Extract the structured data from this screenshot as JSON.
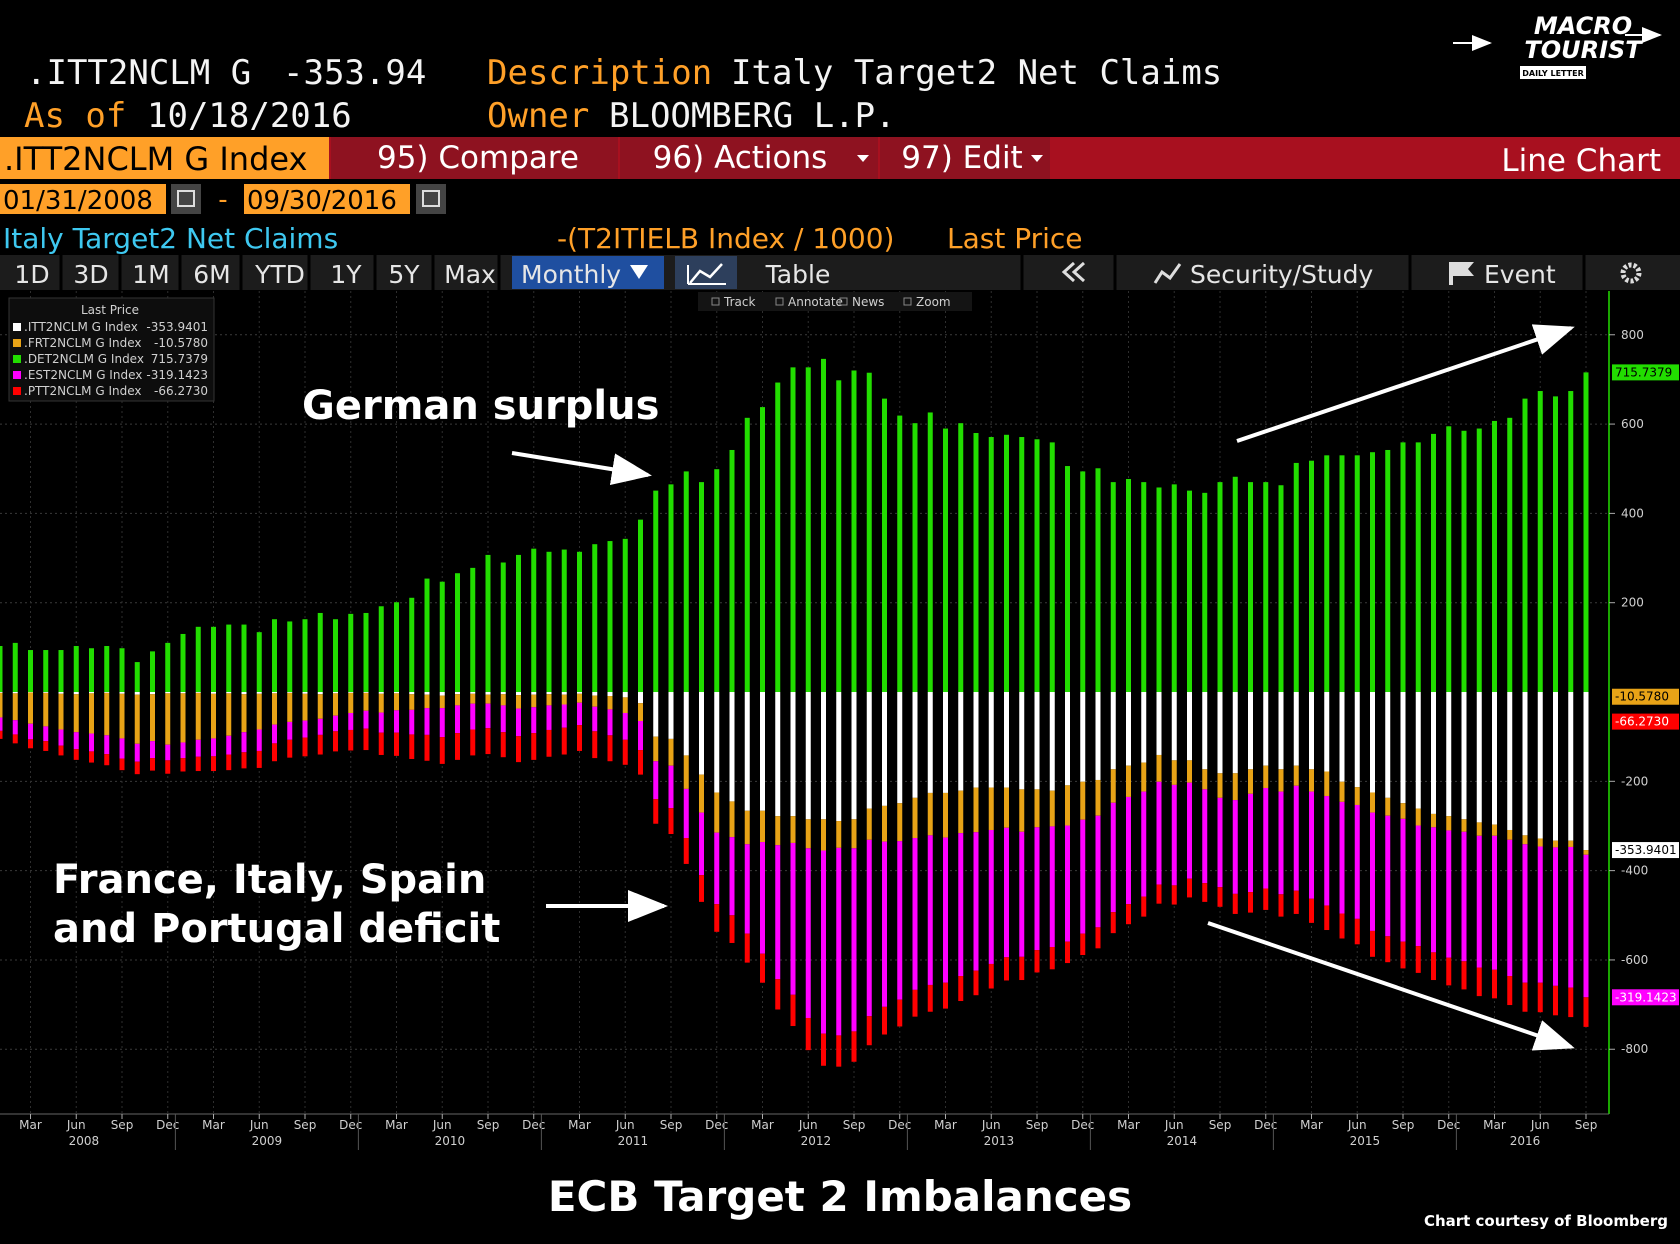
{
  "header": {
    "ticker": ".ITT2NCLM G",
    "value": -353.94,
    "description_label": "Description",
    "description": "Italy Target2 Net Claims",
    "as_of_label": "As of",
    "as_of": "10/18/2016",
    "owner_label": "Owner",
    "owner": "BLOOMBERG L.P."
  },
  "logo": {
    "line1": "MACRO",
    "line2": "TOURIST",
    "line3": "DAILY LETTER"
  },
  "menu": {
    "security": ".ITT2NCLM G Index",
    "compare": "95) Compare",
    "actions": "96) Actions",
    "edit": "97) Edit",
    "view": "Line Chart"
  },
  "dates": {
    "start": "01/31/2008",
    "separator": "-",
    "end": "09/30/2016"
  },
  "chart_header": {
    "title": "Italy Target2 Net Claims",
    "formula": "-(T2ITIELB Index / 1000)",
    "field": "Last Price"
  },
  "toolbar": {
    "ranges": [
      "1D",
      "3D",
      "1M",
      "6M",
      "YTD",
      "1Y",
      "5Y",
      "Max"
    ],
    "frequency": "Monthly",
    "table": "Table",
    "study": "Security/Study",
    "event": "Event"
  },
  "chart_tools": [
    "Track",
    "Annotate",
    "News",
    "Zoom"
  ],
  "chart_data": {
    "type": "bar",
    "stacked": true,
    "grid": true,
    "legend_title": "Last Price",
    "legend_position": "top-left",
    "categories": [
      null,
      null,
      "Mar",
      null,
      null,
      "Jun",
      null,
      null,
      "Sep",
      null,
      null,
      "Dec",
      null,
      null,
      "Mar",
      null,
      null,
      "Jun",
      null,
      null,
      "Sep",
      null,
      null,
      "Dec",
      null,
      null,
      "Mar",
      null,
      null,
      "Jun",
      null,
      null,
      "Sep",
      null,
      null,
      "Dec",
      null,
      null,
      "Mar",
      null,
      null,
      "Jun",
      null,
      null,
      "Sep",
      null,
      null,
      "Dec",
      null,
      null,
      "Mar",
      null,
      null,
      "Jun",
      null,
      null,
      "Sep",
      null,
      null,
      "Dec",
      null,
      null,
      "Mar",
      null,
      null,
      "Jun",
      null,
      null,
      "Sep",
      null,
      null,
      "Dec",
      null,
      null,
      "Mar",
      null,
      null,
      "Jun",
      null,
      null,
      "Sep",
      null,
      null,
      "Dec",
      null,
      null,
      "Mar",
      null,
      null,
      "Jun",
      null,
      null,
      "Sep",
      null,
      null,
      "Dec",
      null,
      null,
      "Mar",
      null,
      null,
      "Jun",
      null,
      null,
      "Sep"
    ],
    "years": [
      "2008",
      "2009",
      "2010",
      "2011",
      "2012",
      "2013",
      "2014",
      "2015",
      "2016"
    ],
    "series": [
      {
        "name": ".ITT2NCLM G Index",
        "color": "#ffffff",
        "last_label": "-353.9401",
        "values": [
          -2,
          -3,
          -1,
          -2,
          -4,
          -5,
          -3,
          -2,
          -4,
          -6,
          -5,
          -3,
          -3,
          -2,
          -4,
          -3,
          -5,
          -4,
          -3,
          -2,
          -4,
          -5,
          -3,
          -2,
          -2,
          -4,
          -3,
          -5,
          -6,
          -8,
          -5,
          -4,
          -6,
          -5,
          -7,
          -6,
          -5,
          -6,
          -4,
          -8,
          -9,
          -12,
          -25,
          -100,
          -105,
          -142,
          -185,
          -225,
          -245,
          -266,
          -266,
          -278,
          -278,
          -285,
          -285,
          -289,
          -285,
          -261,
          -255,
          -249,
          -237,
          -226,
          -226,
          -221,
          -214,
          -214,
          -214,
          -218,
          -218,
          -221,
          -209,
          -201,
          -197,
          -173,
          -165,
          -158,
          -141,
          -153,
          -153,
          -173,
          -182,
          -182,
          -173,
          -165,
          -173,
          -165,
          -173,
          -178,
          -201,
          -213,
          -225,
          -237,
          -249,
          -261,
          -273,
          -278,
          -285,
          -292,
          -297,
          -309,
          -321,
          -328,
          -333,
          -333,
          -353.9401
        ]
      },
      {
        "name": ".FRT2NCLM G Index",
        "color": "#e8a317",
        "last_label": "-10.5780",
        "values": [
          -55,
          -60,
          -70,
          -75,
          -80,
          -85,
          -90,
          -95,
          -100,
          -110,
          -105,
          -115,
          -110,
          -105,
          -100,
          -95,
          -85,
          -80,
          -70,
          -65,
          -60,
          -55,
          -50,
          -45,
          -40,
          -42,
          -38,
          -35,
          -30,
          -28,
          -25,
          -22,
          -20,
          -25,
          -30,
          -28,
          -25,
          -22,
          -20,
          -25,
          -30,
          -35,
          -40,
          -55,
          -60,
          -75,
          -85,
          -90,
          -80,
          -75,
          -70,
          -65,
          -60,
          -65,
          -70,
          -60,
          -65,
          -70,
          -80,
          -85,
          -90,
          -95,
          -100,
          -95,
          -100,
          -95,
          -90,
          -95,
          -85,
          -80,
          -90,
          -85,
          -80,
          -75,
          -70,
          -65,
          -60,
          -55,
          -50,
          -45,
          -55,
          -60,
          -55,
          -50,
          -50,
          -45,
          -50,
          -55,
          -45,
          -40,
          -45,
          -40,
          -35,
          -38,
          -30,
          -32,
          -28,
          -30,
          -25,
          -22,
          -20,
          -18,
          -15,
          -14,
          -10.578
        ]
      },
      {
        "name": ".DET2NCLM G Index",
        "color": "#22dd00",
        "last_label": "715.7379",
        "values": [
          103,
          110,
          94,
          94,
          94,
          103,
          98,
          103,
          98,
          67,
          91,
          110,
          130,
          146,
          146,
          151,
          151,
          134,
          163,
          158,
          163,
          177,
          163,
          175,
          177,
          192,
          201,
          211,
          254,
          247,
          266,
          278,
          307,
          290,
          307,
          321,
          314,
          319,
          314,
          331,
          338,
          343,
          386,
          451,
          465,
          494,
          470,
          499,
          542,
          614,
          638,
          693,
          727,
          727,
          746,
          698,
          720,
          715,
          657,
          619,
          602,
          626,
          590,
          602,
          580,
          571,
          576,
          571,
          566,
          559,
          506,
          494,
          501,
          470,
          477,
          470,
          458,
          465,
          451,
          446,
          470,
          482,
          470,
          470,
          463,
          513,
          518,
          530,
          530,
          530,
          537,
          542,
          559,
          559,
          578,
          595,
          585,
          590,
          607,
          614,
          657,
          674,
          662,
          674,
          715.7379
        ]
      },
      {
        "name": ".EST2NCLM G Index",
        "color": "#ff00ff",
        "last_label": "-319.1423",
        "values": [
          -30,
          -32,
          -35,
          -33,
          -36,
          -38,
          -40,
          -42,
          -45,
          -40,
          -38,
          -35,
          -35,
          -38,
          -40,
          -42,
          -45,
          -48,
          -42,
          -40,
          -38,
          -36,
          -35,
          -38,
          -40,
          -45,
          -50,
          -55,
          -60,
          -65,
          -62,
          -58,
          -55,
          -60,
          -62,
          -58,
          -55,
          -52,
          -50,
          -55,
          -58,
          -60,
          -65,
          -85,
          -95,
          -110,
          -140,
          -160,
          -175,
          -200,
          -250,
          -300,
          -340,
          -380,
          -410,
          -420,
          -410,
          -395,
          -370,
          -355,
          -340,
          -335,
          -325,
          -320,
          -310,
          -300,
          -290,
          -280,
          -275,
          -270,
          -260,
          -255,
          -250,
          -245,
          -240,
          -235,
          -230,
          -225,
          -215,
          -210,
          -200,
          -210,
          -220,
          -225,
          -230,
          -235,
          -240,
          -245,
          -250,
          -255,
          -265,
          -270,
          -275,
          -270,
          -280,
          -285,
          -290,
          -295,
          -300,
          -305,
          -310,
          -305,
          -310,
          -315,
          -319.1423
        ]
      },
      {
        "name": ".PTT2NCLM G Index",
        "color": "#ff0000",
        "last_label": "-66.2730",
        "values": [
          -18,
          -20,
          -20,
          -22,
          -22,
          -24,
          -25,
          -25,
          -26,
          -28,
          -28,
          -30,
          -30,
          -32,
          -33,
          -35,
          -36,
          -38,
          -40,
          -40,
          -42,
          -44,
          -45,
          -46,
          -48,
          -50,
          -52,
          -55,
          -58,
          -60,
          -60,
          -58,
          -58,
          -56,
          -58,
          -60,
          -60,
          -60,
          -58,
          -60,
          -58,
          -56,
          -55,
          -55,
          -58,
          -58,
          -60,
          -62,
          -62,
          -65,
          -65,
          -68,
          -70,
          -72,
          -72,
          -70,
          -68,
          -65,
          -62,
          -60,
          -60,
          -60,
          -58,
          -56,
          -55,
          -55,
          -52,
          -52,
          -50,
          -50,
          -48,
          -48,
          -47,
          -47,
          -45,
          -45,
          -43,
          -43,
          -42,
          -42,
          -44,
          -45,
          -46,
          -48,
          -50,
          -52,
          -54,
          -55,
          -56,
          -57,
          -58,
          -58,
          -60,
          -60,
          -62,
          -62,
          -63,
          -64,
          -64,
          -65,
          -65,
          -66,
          -66,
          -66,
          -66.273
        ]
      }
    ],
    "ylim": [
      -945,
      898
    ],
    "yticks": [
      800,
      600,
      400,
      200,
      -200,
      -400,
      -600,
      -800
    ]
  },
  "annotations": {
    "surplus": "German surplus",
    "deficit_line1": "France, Italy, Spain",
    "deficit_line2": "and Portugal deficit"
  },
  "footer": {
    "title": "ECB Target 2 Imbalances",
    "credit": "Chart courtesy of Bloomberg"
  }
}
